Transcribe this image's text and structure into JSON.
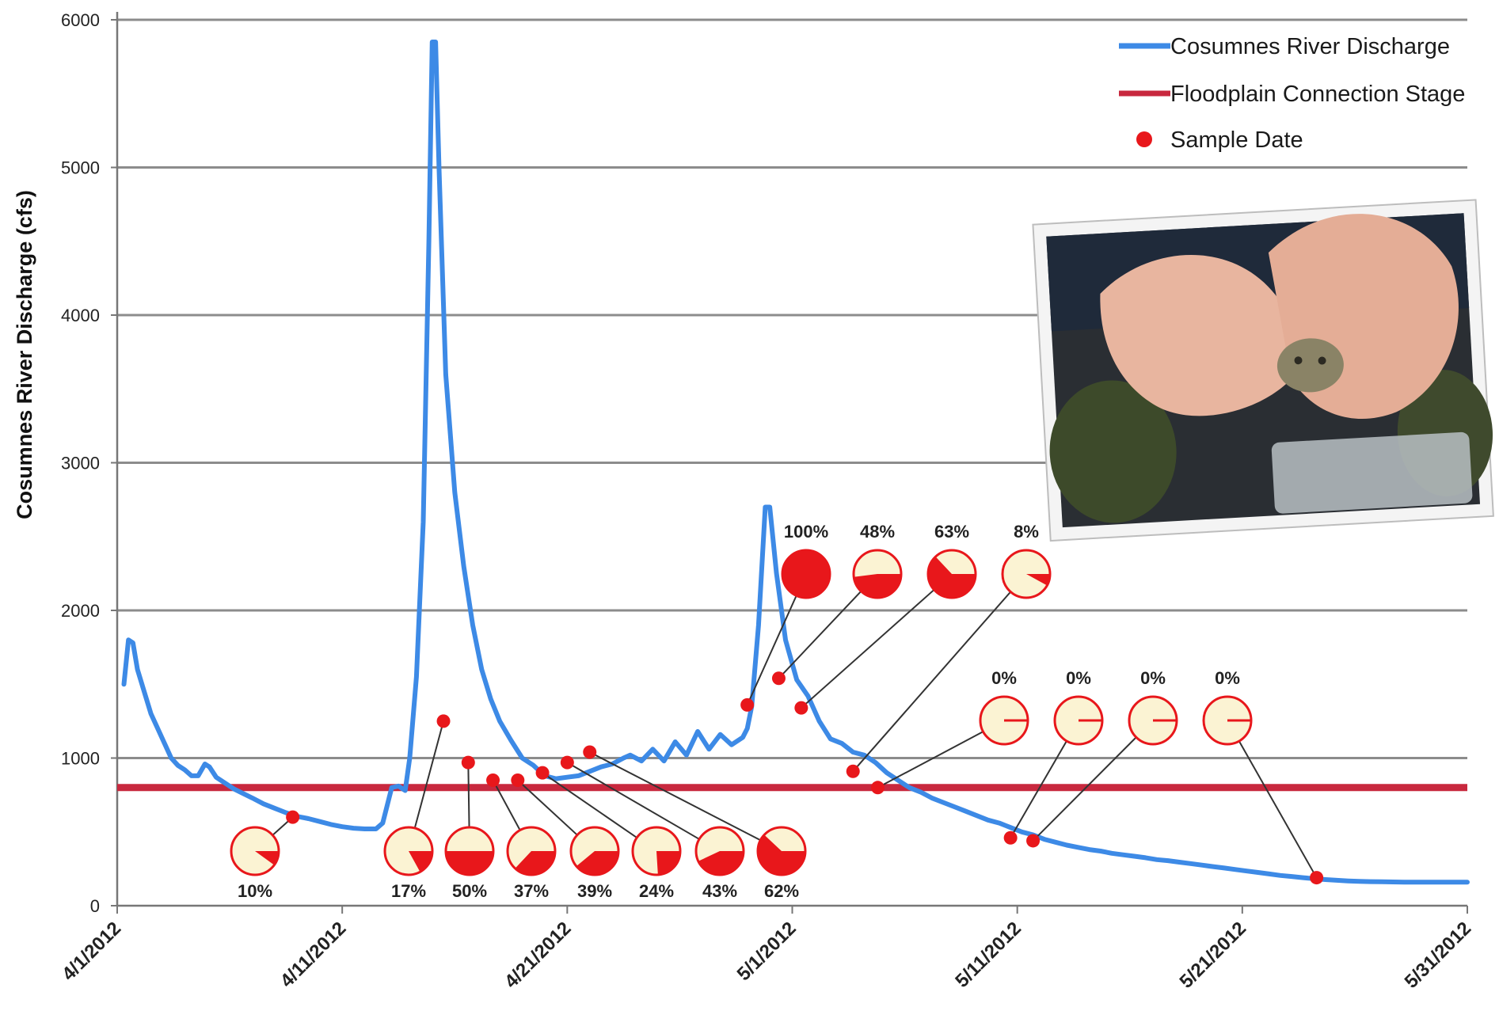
{
  "chart_data": {
    "type": "line",
    "title": "",
    "xlabel": "",
    "ylabel": "Cosumnes River Discharge (cfs)",
    "ylim": [
      0,
      6000
    ],
    "yticks": [
      0,
      1000,
      2000,
      3000,
      4000,
      5000,
      6000
    ],
    "xlim": [
      0,
      60
    ],
    "xticks": [
      {
        "x": 0,
        "label": "4/1/2012"
      },
      {
        "x": 10,
        "label": "4/11/2012"
      },
      {
        "x": 20,
        "label": "4/21/2012"
      },
      {
        "x": 30,
        "label": "5/1/2012"
      },
      {
        "x": 40,
        "label": "5/11/2012"
      },
      {
        "x": 50,
        "label": "5/21/2012"
      },
      {
        "x": 60,
        "label": "5/31/2012"
      }
    ],
    "grid": "horizontal",
    "legend_position": "top-right",
    "legend": [
      {
        "label": "Cosumnes River Discharge",
        "type": "line",
        "color": "#3d8ae6"
      },
      {
        "label": "Floodplain Connection Stage",
        "type": "line",
        "color": "#c8283e"
      },
      {
        "label": "Sample Date",
        "type": "dot",
        "color": "#e8171b"
      }
    ],
    "series": [
      {
        "name": "Cosumnes River Discharge",
        "color": "#3d8ae6",
        "points": [
          [
            0.3,
            1500
          ],
          [
            0.5,
            1800
          ],
          [
            0.7,
            1780
          ],
          [
            0.9,
            1600
          ],
          [
            1.2,
            1450
          ],
          [
            1.5,
            1300
          ],
          [
            1.8,
            1200
          ],
          [
            2.1,
            1100
          ],
          [
            2.4,
            1000
          ],
          [
            2.7,
            950
          ],
          [
            3.0,
            920
          ],
          [
            3.3,
            880
          ],
          [
            3.6,
            880
          ],
          [
            3.9,
            960
          ],
          [
            4.1,
            940
          ],
          [
            4.4,
            870
          ],
          [
            4.8,
            830
          ],
          [
            5.2,
            790
          ],
          [
            5.6,
            760
          ],
          [
            6.0,
            730
          ],
          [
            6.5,
            690
          ],
          [
            7.0,
            660
          ],
          [
            7.5,
            630
          ],
          [
            8.0,
            605
          ],
          [
            8.5,
            590
          ],
          [
            9.0,
            570
          ],
          [
            9.5,
            550
          ],
          [
            10.0,
            535
          ],
          [
            10.5,
            525
          ],
          [
            11.0,
            520
          ],
          [
            11.5,
            520
          ],
          [
            11.8,
            560
          ],
          [
            12.0,
            680
          ],
          [
            12.2,
            800
          ],
          [
            12.5,
            810
          ],
          [
            12.8,
            780
          ],
          [
            13.0,
            1000
          ],
          [
            13.3,
            1550
          ],
          [
            13.6,
            2600
          ],
          [
            13.85,
            4500
          ],
          [
            14.0,
            5850
          ],
          [
            14.15,
            5850
          ],
          [
            14.3,
            5000
          ],
          [
            14.6,
            3600
          ],
          [
            15.0,
            2800
          ],
          [
            15.4,
            2300
          ],
          [
            15.8,
            1900
          ],
          [
            16.2,
            1600
          ],
          [
            16.6,
            1400
          ],
          [
            17.0,
            1250
          ],
          [
            17.5,
            1120
          ],
          [
            18.0,
            1000
          ],
          [
            18.5,
            950
          ],
          [
            19.0,
            880
          ],
          [
            19.5,
            860
          ],
          [
            20.0,
            870
          ],
          [
            20.5,
            880
          ],
          [
            21.0,
            910
          ],
          [
            21.5,
            940
          ],
          [
            22.0,
            960
          ],
          [
            22.5,
            1000
          ],
          [
            22.8,
            1020
          ],
          [
            23.3,
            980
          ],
          [
            23.8,
            1060
          ],
          [
            24.3,
            980
          ],
          [
            24.8,
            1110
          ],
          [
            25.3,
            1020
          ],
          [
            25.8,
            1180
          ],
          [
            26.3,
            1060
          ],
          [
            26.8,
            1160
          ],
          [
            27.3,
            1090
          ],
          [
            27.8,
            1140
          ],
          [
            28.0,
            1200
          ],
          [
            28.2,
            1350
          ],
          [
            28.5,
            1900
          ],
          [
            28.8,
            2700
          ],
          [
            29.0,
            2700
          ],
          [
            29.3,
            2250
          ],
          [
            29.7,
            1800
          ],
          [
            30.2,
            1530
          ],
          [
            30.7,
            1420
          ],
          [
            31.2,
            1250
          ],
          [
            31.7,
            1130
          ],
          [
            32.2,
            1100
          ],
          [
            32.7,
            1040
          ],
          [
            33.2,
            1020
          ],
          [
            33.7,
            970
          ],
          [
            34.2,
            900
          ],
          [
            34.7,
            850
          ],
          [
            35.2,
            800
          ],
          [
            35.7,
            770
          ],
          [
            36.2,
            730
          ],
          [
            36.7,
            700
          ],
          [
            37.2,
            670
          ],
          [
            37.7,
            640
          ],
          [
            38.2,
            610
          ],
          [
            38.7,
            580
          ],
          [
            39.2,
            560
          ],
          [
            39.7,
            530
          ],
          [
            40.2,
            500
          ],
          [
            40.7,
            480
          ],
          [
            41.2,
            450
          ],
          [
            41.7,
            430
          ],
          [
            42.2,
            410
          ],
          [
            42.7,
            395
          ],
          [
            43.2,
            380
          ],
          [
            43.7,
            370
          ],
          [
            44.2,
            355
          ],
          [
            44.7,
            345
          ],
          [
            45.2,
            335
          ],
          [
            45.7,
            325
          ],
          [
            46.2,
            312
          ],
          [
            46.7,
            305
          ],
          [
            47.2,
            295
          ],
          [
            47.7,
            285
          ],
          [
            48.2,
            275
          ],
          [
            48.7,
            265
          ],
          [
            49.2,
            255
          ],
          [
            49.7,
            245
          ],
          [
            50.2,
            235
          ],
          [
            50.7,
            225
          ],
          [
            51.2,
            215
          ],
          [
            51.7,
            205
          ],
          [
            52.2,
            198
          ],
          [
            52.7,
            190
          ],
          [
            53.2,
            183
          ],
          [
            53.7,
            177
          ],
          [
            54.2,
            172
          ],
          [
            54.7,
            168
          ],
          [
            55.2,
            165
          ],
          [
            55.7,
            163
          ],
          [
            56.2,
            162
          ],
          [
            56.7,
            161
          ],
          [
            57.2,
            160
          ],
          [
            57.7,
            160
          ],
          [
            58.2,
            160
          ],
          [
            58.7,
            160
          ],
          [
            59.2,
            160
          ],
          [
            59.7,
            160
          ],
          [
            60.0,
            160
          ]
        ]
      },
      {
        "name": "Floodplain Connection Stage",
        "color": "#c8283e",
        "points": [
          [
            0,
            800
          ],
          [
            60,
            800
          ]
        ]
      }
    ],
    "samples": [
      {
        "x": 7.8,
        "y": 600,
        "pct": "10%",
        "frac": 0.1
      },
      {
        "x": 14.5,
        "y": 1250,
        "pct": "17%",
        "frac": 0.17
      },
      {
        "x": 15.6,
        "y": 970,
        "pct": "50%",
        "frac": 0.5
      },
      {
        "x": 16.7,
        "y": 850,
        "pct": "37%",
        "frac": 0.37
      },
      {
        "x": 17.8,
        "y": 850,
        "pct": "39%",
        "frac": 0.39
      },
      {
        "x": 18.9,
        "y": 900,
        "pct": "24%",
        "frac": 0.24
      },
      {
        "x": 20.0,
        "y": 970,
        "pct": "43%",
        "frac": 0.43
      },
      {
        "x": 21.0,
        "y": 1040,
        "pct": "62%",
        "frac": 0.62
      },
      {
        "x": 28.0,
        "y": 1360,
        "pct": "100%",
        "frac": 1.0
      },
      {
        "x": 29.4,
        "y": 1540,
        "pct": "48%",
        "frac": 0.48
      },
      {
        "x": 30.4,
        "y": 1340,
        "pct": "63%",
        "frac": 0.63
      },
      {
        "x": 32.7,
        "y": 910,
        "pct": "8%",
        "frac": 0.08
      },
      {
        "x": 33.8,
        "y": 800,
        "pct": "0%",
        "frac": 0.0
      },
      {
        "x": 39.7,
        "y": 460,
        "pct": "0%",
        "frac": 0.0
      },
      {
        "x": 40.7,
        "y": 440,
        "pct": "0%",
        "frac": 0.0
      },
      {
        "x": 53.3,
        "y": 190,
        "pct": "0%",
        "frac": 0.0
      }
    ]
  },
  "photo": {
    "description_icon": "frog-in-hands-photo"
  }
}
